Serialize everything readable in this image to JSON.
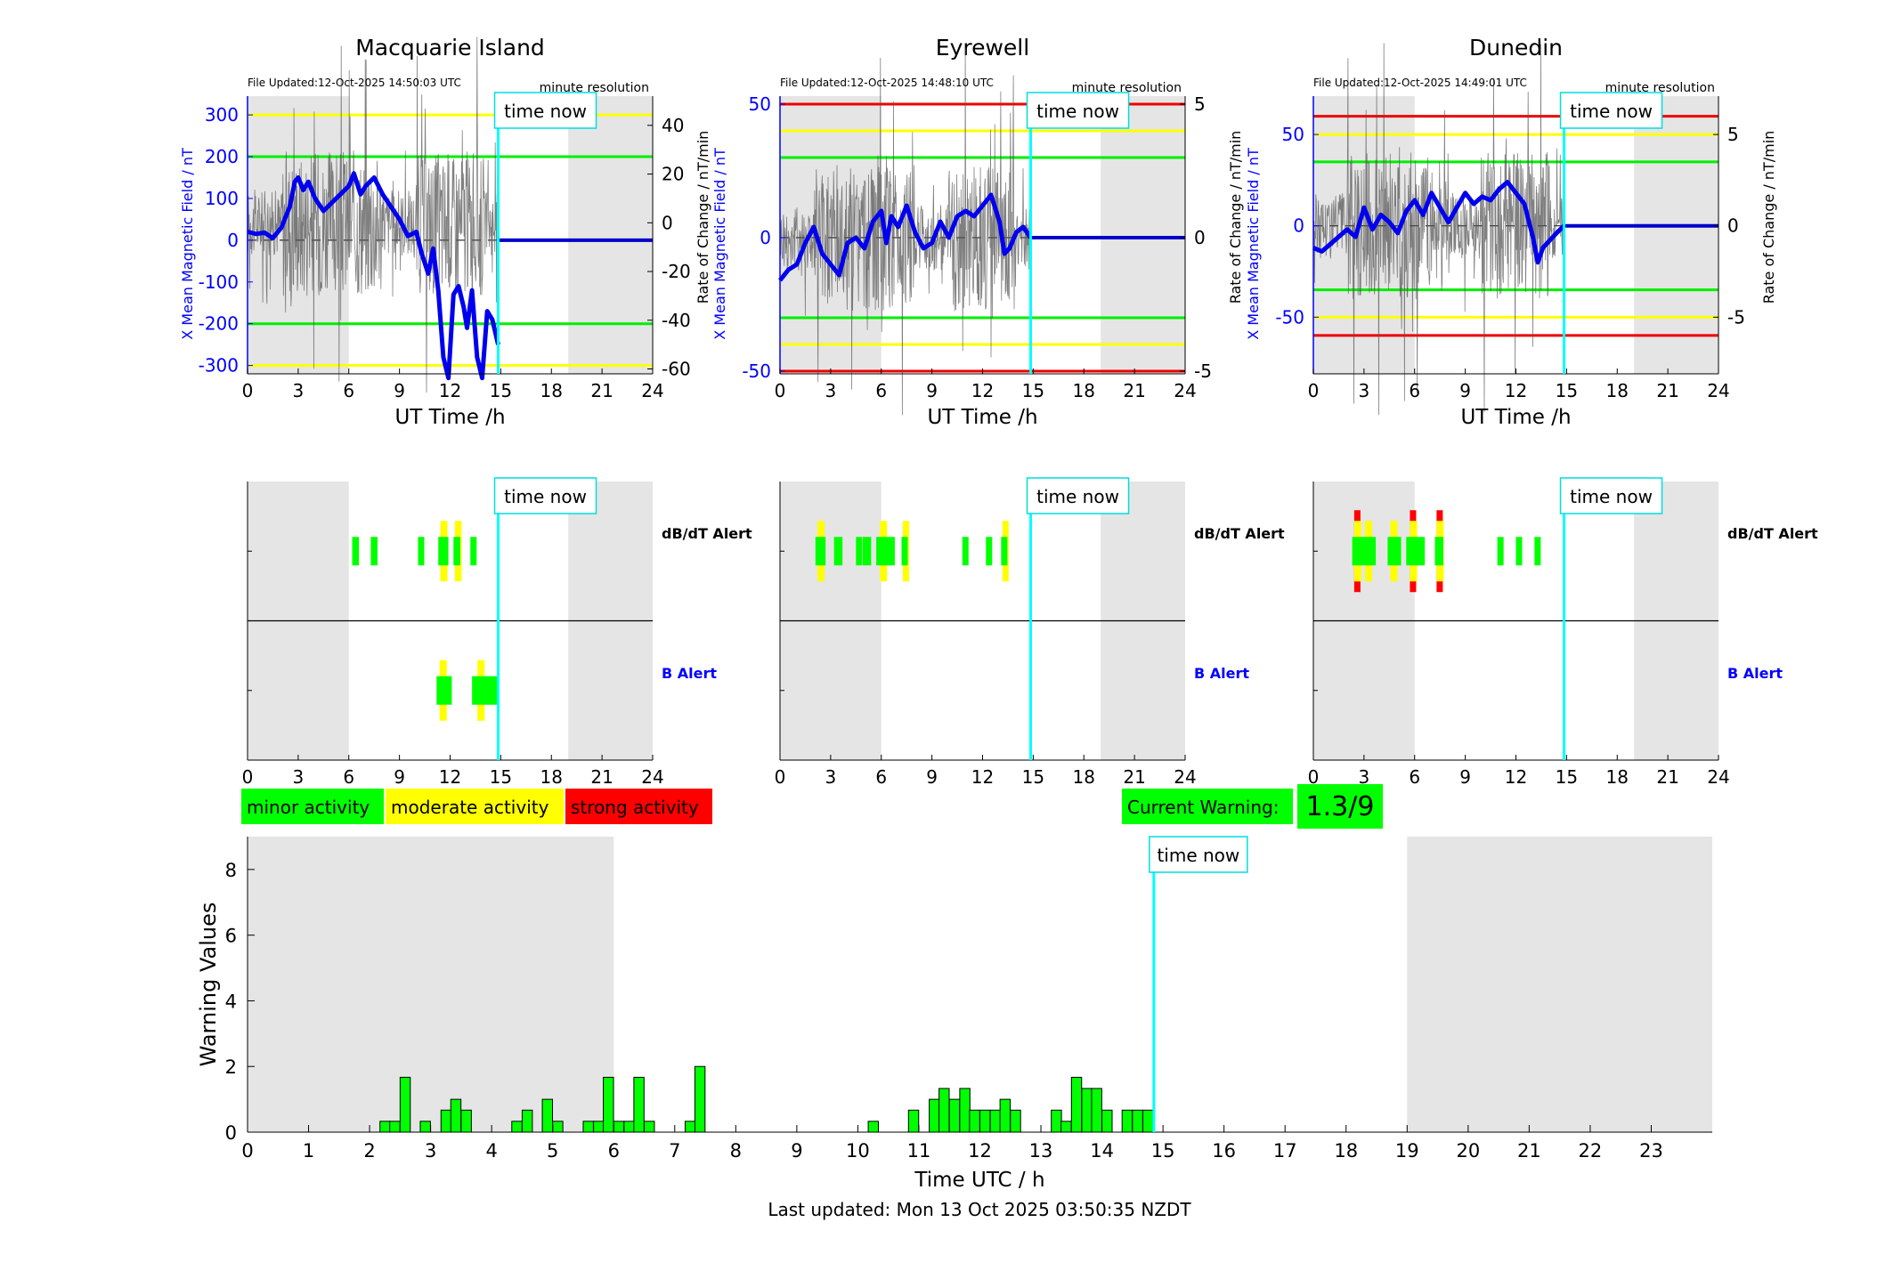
{
  "stations": [
    {
      "title": "Macquarie Island",
      "file_updated": "File Updated:12-Oct-2025 14:50:03 UTC",
      "resolution": "minute resolution",
      "time_now_label": "time now",
      "ylabel_left": "X Mean Magnetic Field / nT",
      "ylabel_right": "Rate of Change / nT/min",
      "xlabel": "UT Time /h",
      "xlim": [
        0,
        24
      ],
      "x_ticks": [
        0,
        3,
        6,
        9,
        12,
        15,
        18,
        21,
        24
      ],
      "ylim_left": [
        -320,
        345
      ],
      "left_ticks": [
        -300,
        -200,
        -100,
        0,
        100,
        200,
        300
      ],
      "ylim_right": [
        -62,
        52
      ],
      "right_ticks": [
        -60,
        -40,
        -20,
        0,
        20,
        40
      ],
      "night_shading_h": [
        [
          0,
          6
        ],
        [
          19,
          24
        ]
      ],
      "time_now_h": 14.85,
      "threshold_lines": [
        {
          "y": 300,
          "color": "#ffff00"
        },
        {
          "y": 200,
          "color": "#00ee00"
        },
        {
          "y": -200,
          "color": "#00ee00"
        },
        {
          "y": -300,
          "color": "#ffff00"
        }
      ],
      "field_trace_nT": [
        [
          0,
          20
        ],
        [
          0.5,
          15
        ],
        [
          1,
          18
        ],
        [
          1.5,
          5
        ],
        [
          2,
          30
        ],
        [
          2.5,
          80
        ],
        [
          2.8,
          140
        ],
        [
          3,
          150
        ],
        [
          3.3,
          120
        ],
        [
          3.6,
          140
        ],
        [
          4,
          100
        ],
        [
          4.5,
          70
        ],
        [
          5,
          90
        ],
        [
          5.5,
          110
        ],
        [
          6,
          130
        ],
        [
          6.3,
          160
        ],
        [
          6.7,
          110
        ],
        [
          7,
          130
        ],
        [
          7.5,
          150
        ],
        [
          8,
          110
        ],
        [
          8.5,
          80
        ],
        [
          9,
          50
        ],
        [
          9.5,
          10
        ],
        [
          10,
          20
        ],
        [
          10.3,
          -30
        ],
        [
          10.7,
          -80
        ],
        [
          11,
          -20
        ],
        [
          11.3,
          -120
        ],
        [
          11.6,
          -280
        ],
        [
          11.9,
          -330
        ],
        [
          12.2,
          -130
        ],
        [
          12.5,
          -110
        ],
        [
          12.8,
          -160
        ],
        [
          13,
          -210
        ],
        [
          13.3,
          -120
        ],
        [
          13.6,
          -280
        ],
        [
          13.9,
          -330
        ],
        [
          14.2,
          -170
        ],
        [
          14.5,
          -190
        ],
        [
          14.85,
          -250
        ]
      ],
      "forecast_after_now_nT": 0,
      "alert_label_db": "dB/dT Alert",
      "alert_label_b": "B Alert",
      "db_alerts": [
        {
          "start": 6.2,
          "end": 6.6,
          "level": "minor"
        },
        {
          "start": 7.3,
          "end": 7.7,
          "level": "minor"
        },
        {
          "start": 10.1,
          "end": 10.4,
          "level": "minor"
        },
        {
          "start": 11.3,
          "end": 11.9,
          "level": "moderate"
        },
        {
          "start": 12.2,
          "end": 12.6,
          "level": "moderate"
        },
        {
          "start": 13.2,
          "end": 13.5,
          "level": "minor"
        }
      ],
      "b_alerts": [
        {
          "start": 11.2,
          "end": 12.1,
          "level": "moderate"
        },
        {
          "start": 13.3,
          "end": 14.9,
          "level": "moderate"
        }
      ]
    },
    {
      "title": "Eyrewell",
      "file_updated": "File Updated:12-Oct-2025 14:48:10 UTC",
      "resolution": "minute resolution",
      "time_now_label": "time now",
      "ylabel_left": "X Mean Magnetic Field / nT",
      "ylabel_right": "Rate of Change / nT/min",
      "xlabel": "UT Time /h",
      "xlim": [
        0,
        24
      ],
      "x_ticks": [
        0,
        3,
        6,
        9,
        12,
        15,
        18,
        21,
        24
      ],
      "ylim_left": [
        -51,
        53
      ],
      "left_ticks": [
        -50,
        0,
        50
      ],
      "ylim_right": [
        -5.1,
        5.3
      ],
      "right_ticks": [
        -5,
        0,
        5
      ],
      "night_shading_h": [
        [
          0,
          6
        ],
        [
          19,
          24
        ]
      ],
      "time_now_h": 14.85,
      "threshold_lines": [
        {
          "y": 50,
          "color": "#ee0000"
        },
        {
          "y": 40,
          "color": "#ffff00"
        },
        {
          "y": 30,
          "color": "#00ee00"
        },
        {
          "y": -30,
          "color": "#00ee00"
        },
        {
          "y": -40,
          "color": "#ffff00"
        },
        {
          "y": -50,
          "color": "#ee0000"
        }
      ],
      "field_trace_nT": [
        [
          0,
          -16
        ],
        [
          0.5,
          -12
        ],
        [
          1,
          -10
        ],
        [
          1.5,
          -2
        ],
        [
          2,
          4
        ],
        [
          2.5,
          -6
        ],
        [
          3,
          -10
        ],
        [
          3.5,
          -14
        ],
        [
          4,
          -2
        ],
        [
          4.5,
          0
        ],
        [
          5,
          -4
        ],
        [
          5.5,
          6
        ],
        [
          6,
          10
        ],
        [
          6.3,
          -2
        ],
        [
          6.6,
          8
        ],
        [
          7,
          4
        ],
        [
          7.5,
          12
        ],
        [
          8,
          2
        ],
        [
          8.5,
          -4
        ],
        [
          9,
          -2
        ],
        [
          9.5,
          6
        ],
        [
          10,
          0
        ],
        [
          10.5,
          8
        ],
        [
          11,
          10
        ],
        [
          11.5,
          8
        ],
        [
          12,
          12
        ],
        [
          12.5,
          16
        ],
        [
          13,
          6
        ],
        [
          13.3,
          -6
        ],
        [
          13.6,
          -4
        ],
        [
          14,
          2
        ],
        [
          14.4,
          4
        ],
        [
          14.85,
          0
        ]
      ],
      "forecast_after_now_nT": 0,
      "alert_label_db": "dB/dT Alert",
      "alert_label_b": "B Alert",
      "db_alerts": [
        {
          "start": 2.1,
          "end": 2.7,
          "level": "moderate"
        },
        {
          "start": 3.2,
          "end": 3.7,
          "level": "minor"
        },
        {
          "start": 4.5,
          "end": 4.8,
          "level": "minor"
        },
        {
          "start": 4.9,
          "end": 5.4,
          "level": "minor"
        },
        {
          "start": 5.7,
          "end": 6.8,
          "level": "moderate"
        },
        {
          "start": 7.2,
          "end": 7.5,
          "level": "moderate"
        },
        {
          "start": 10.8,
          "end": 11.1,
          "level": "minor"
        },
        {
          "start": 12.2,
          "end": 12.5,
          "level": "minor"
        },
        {
          "start": 13.1,
          "end": 13.4,
          "level": "moderate"
        }
      ],
      "b_alerts": []
    },
    {
      "title": "Dunedin",
      "file_updated": "File Updated:12-Oct-2025 14:49:01 UTC",
      "resolution": "minute resolution",
      "time_now_label": "time now",
      "ylabel_left": "X Mean Magnetic Field / nT",
      "ylabel_right": "Rate of Change / nT/min",
      "xlabel": "UT Time /h",
      "xlim": [
        0,
        24
      ],
      "x_ticks": [
        0,
        3,
        6,
        9,
        12,
        15,
        18,
        21,
        24
      ],
      "ylim_left": [
        -81,
        71
      ],
      "left_ticks": [
        -50,
        0,
        50
      ],
      "ylim_right": [
        -8.1,
        7.1
      ],
      "right_ticks": [
        -5,
        0,
        5
      ],
      "night_shading_h": [
        [
          0,
          6
        ],
        [
          19,
          24
        ]
      ],
      "time_now_h": 14.85,
      "threshold_lines": [
        {
          "y": 60,
          "color": "#ee0000"
        },
        {
          "y": 50,
          "color": "#ffff00"
        },
        {
          "y": 35,
          "color": "#00ee00"
        },
        {
          "y": -35,
          "color": "#00ee00"
        },
        {
          "y": -50,
          "color": "#ffff00"
        },
        {
          "y": -60,
          "color": "#ee0000"
        }
      ],
      "field_trace_nT": [
        [
          0,
          -12
        ],
        [
          0.5,
          -14
        ],
        [
          1,
          -10
        ],
        [
          1.5,
          -6
        ],
        [
          2,
          -2
        ],
        [
          2.5,
          -6
        ],
        [
          3,
          10
        ],
        [
          3.5,
          -2
        ],
        [
          4,
          6
        ],
        [
          4.5,
          2
        ],
        [
          5,
          -4
        ],
        [
          5.5,
          8
        ],
        [
          6,
          14
        ],
        [
          6.5,
          6
        ],
        [
          7,
          18
        ],
        [
          7.5,
          10
        ],
        [
          8,
          2
        ],
        [
          8.5,
          10
        ],
        [
          9,
          18
        ],
        [
          9.5,
          12
        ],
        [
          10,
          16
        ],
        [
          10.5,
          14
        ],
        [
          11,
          20
        ],
        [
          11.5,
          24
        ],
        [
          12,
          18
        ],
        [
          12.5,
          12
        ],
        [
          13,
          -6
        ],
        [
          13.3,
          -20
        ],
        [
          13.6,
          -12
        ],
        [
          14,
          -8
        ],
        [
          14.4,
          -4
        ],
        [
          14.85,
          0
        ]
      ],
      "forecast_after_now_nT": 0,
      "alert_label_db": "dB/dT Alert",
      "alert_label_b": "B Alert",
      "db_alerts": [
        {
          "start": 2.3,
          "end": 2.9,
          "level": "strong"
        },
        {
          "start": 2.9,
          "end": 3.7,
          "level": "moderate"
        },
        {
          "start": 4.4,
          "end": 5.2,
          "level": "moderate"
        },
        {
          "start": 5.5,
          "end": 6.6,
          "level": "strong"
        },
        {
          "start": 7.2,
          "end": 7.7,
          "level": "strong"
        },
        {
          "start": 10.9,
          "end": 11.2,
          "level": "minor"
        },
        {
          "start": 12.0,
          "end": 12.3,
          "level": "minor"
        },
        {
          "start": 13.1,
          "end": 13.4,
          "level": "minor"
        }
      ],
      "b_alerts": []
    }
  ],
  "legend": [
    {
      "label": "minor activity",
      "color": "#00ff00"
    },
    {
      "label": "moderate activity",
      "color": "#ffff00"
    },
    {
      "label": "strong activity",
      "color": "#ff0000"
    }
  ],
  "current_warning": {
    "label": "Current Warning:",
    "value": "1.3/9",
    "color": "#00ff00"
  },
  "chart_data": {
    "type": "bar",
    "title": "",
    "xlabel": "Time UTC / h",
    "ylabel": "Warning Values",
    "xlim": [
      0,
      24
    ],
    "ylim": [
      0,
      9
    ],
    "x_ticks": [
      0,
      1,
      2,
      3,
      4,
      5,
      6,
      7,
      8,
      9,
      10,
      11,
      12,
      13,
      14,
      15,
      16,
      17,
      18,
      19,
      20,
      21,
      22,
      23
    ],
    "y_ticks": [
      0,
      2,
      4,
      6,
      8
    ],
    "bin_width_h": 0.1667,
    "bar_color": "#00ff00",
    "night_shading_h": [
      [
        0,
        6
      ],
      [
        19,
        24
      ]
    ],
    "time_now_h": 14.85,
    "time_now_label": "time now",
    "bins": [
      {
        "x": 2.17,
        "v": 0.33
      },
      {
        "x": 2.33,
        "v": 0.33
      },
      {
        "x": 2.5,
        "v": 1.67
      },
      {
        "x": 2.83,
        "v": 0.33
      },
      {
        "x": 3.17,
        "v": 0.67
      },
      {
        "x": 3.33,
        "v": 1.0
      },
      {
        "x": 3.5,
        "v": 0.67
      },
      {
        "x": 4.33,
        "v": 0.33
      },
      {
        "x": 4.5,
        "v": 0.67
      },
      {
        "x": 4.83,
        "v": 1.0
      },
      {
        "x": 5.0,
        "v": 0.33
      },
      {
        "x": 5.5,
        "v": 0.33
      },
      {
        "x": 5.67,
        "v": 0.33
      },
      {
        "x": 5.83,
        "v": 1.67
      },
      {
        "x": 6.0,
        "v": 0.33
      },
      {
        "x": 6.17,
        "v": 0.33
      },
      {
        "x": 6.33,
        "v": 1.67
      },
      {
        "x": 6.5,
        "v": 0.33
      },
      {
        "x": 7.17,
        "v": 0.33
      },
      {
        "x": 7.33,
        "v": 2.0
      },
      {
        "x": 10.17,
        "v": 0.33
      },
      {
        "x": 10.83,
        "v": 0.67
      },
      {
        "x": 11.17,
        "v": 1.0
      },
      {
        "x": 11.33,
        "v": 1.33
      },
      {
        "x": 11.5,
        "v": 1.0
      },
      {
        "x": 11.67,
        "v": 1.33
      },
      {
        "x": 11.83,
        "v": 0.67
      },
      {
        "x": 12.0,
        "v": 0.67
      },
      {
        "x": 12.17,
        "v": 0.67
      },
      {
        "x": 12.33,
        "v": 1.0
      },
      {
        "x": 12.5,
        "v": 0.67
      },
      {
        "x": 13.17,
        "v": 0.67
      },
      {
        "x": 13.33,
        "v": 0.33
      },
      {
        "x": 13.5,
        "v": 1.67
      },
      {
        "x": 13.67,
        "v": 1.33
      },
      {
        "x": 13.83,
        "v": 1.33
      },
      {
        "x": 14.0,
        "v": 0.67
      },
      {
        "x": 14.33,
        "v": 0.67
      },
      {
        "x": 14.5,
        "v": 0.67
      },
      {
        "x": 14.67,
        "v": 0.67
      }
    ]
  },
  "footer": {
    "last_updated": "Last updated: Mon 13 Oct 2025 03:50:35 NZDT"
  }
}
